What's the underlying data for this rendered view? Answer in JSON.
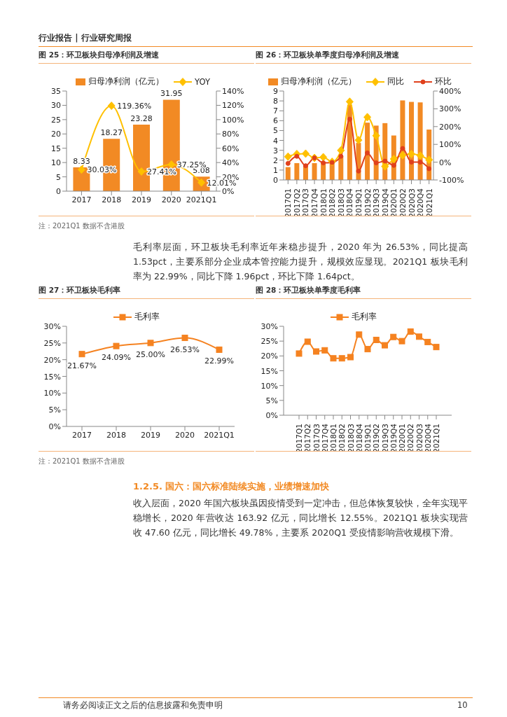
{
  "chart_data": [
    {
      "type": "bar",
      "title": "图 25：环卫板块归母净利润及增速",
      "categories": [
        "2017",
        "2018",
        "2019",
        "2020",
        "2021Q1"
      ],
      "series": [
        {
          "name": "归母净利润（亿元）",
          "type": "bar",
          "color": "#f28a24",
          "values": [
            8.33,
            18.27,
            23.28,
            31.95,
            5.08
          ],
          "value_labels": [
            "8.33",
            "18.27",
            "23.28",
            "31.95",
            "5.08"
          ]
        },
        {
          "name": "YOY",
          "type": "line",
          "axis": "y2",
          "color": "#ffc000",
          "marker": "diamond",
          "values": [
            30.03,
            119.36,
            27.41,
            37.25,
            12.01
          ],
          "value_labels": [
            "30.03%",
            "119.36%",
            "27.41%",
            "37.25%",
            "12.01%"
          ]
        }
      ],
      "ylim": [
        0,
        35
      ],
      "yticks": [
        0,
        5,
        10,
        15,
        20,
        25,
        30,
        35
      ],
      "y2lim": [
        0,
        140
      ],
      "y2ticks": [
        {
          "value": 0,
          "label": "0%"
        },
        {
          "value": 20,
          "label": "20%"
        },
        {
          "value": 40,
          "label": "40%"
        },
        {
          "value": 60,
          "label": "60%"
        },
        {
          "value": 80,
          "label": "80%"
        },
        {
          "value": 100,
          "label": "100%"
        },
        {
          "value": 120,
          "label": "120%"
        },
        {
          "value": 140,
          "label": "140%"
        }
      ],
      "legend": "top",
      "annotations": [
        "行业报告 | 行业研究周报",
        "注：2021Q1 数据不含港股"
      ]
    },
    {
      "type": "bar",
      "title": "图 26：环卫板块单季度归母净利润及增速",
      "categories": [
        "2017Q1",
        "2017Q2",
        "2017Q3",
        "2017Q4",
        "2018Q1",
        "2018Q2",
        "2018Q3",
        "2018Q4",
        "2019Q1",
        "2019Q2",
        "2019Q3",
        "2019Q4",
        "2020Q1",
        "2020Q2",
        "2020Q3",
        "2020Q4",
        "2021Q1"
      ],
      "series": [
        {
          "name": "归母净利润（亿元）",
          "type": "bar",
          "color": "#f28a24",
          "values": [
            1.3,
            1.7,
            1.5,
            1.7,
            1.8,
            1.9,
            2.4,
            7.6,
            3.75,
            5.8,
            5.5,
            5.75,
            4.5,
            8.05,
            7.9,
            7.85,
            5.1
          ]
        },
        {
          "name": "同比",
          "type": "line",
          "axis": "y2",
          "color": "#ffc000",
          "marker": "diamond",
          "values": [
            31,
            46,
            48,
            24,
            28,
            2,
            66,
            340,
            124,
            253,
            149,
            -24,
            18,
            39,
            46,
            37,
            13
          ]
        },
        {
          "name": "环比",
          "type": "line",
          "axis": "y2",
          "color": "#e0401c",
          "marker": "circle",
          "values": [
            -7,
            33,
            -20,
            24,
            -4,
            -2,
            33,
            242,
            -50,
            52,
            -4,
            6,
            -18,
            77,
            0,
            0,
            -37
          ]
        }
      ],
      "ylim": [
        0,
        9
      ],
      "yticks": [
        0,
        1,
        2,
        3,
        4,
        5,
        6,
        7,
        8,
        9
      ],
      "y2lim": [
        -100,
        400
      ],
      "y2ticks": [
        {
          "value": -100,
          "label": "-100%"
        },
        {
          "value": 0,
          "label": "0%"
        },
        {
          "value": 100,
          "label": "100%"
        },
        {
          "value": 200,
          "label": "200%"
        },
        {
          "value": 300,
          "label": "300%"
        },
        {
          "value": 400,
          "label": "400%"
        }
      ],
      "legend": "top"
    },
    {
      "type": "line",
      "title": "图 27：环卫板块毛利率",
      "categories": [
        "2017",
        "2018",
        "2019",
        "2020",
        "2021Q1"
      ],
      "series": [
        {
          "name": "毛利率",
          "color": "#f58220",
          "marker": "square",
          "values": [
            21.67,
            24.09,
            25.0,
            26.53,
            22.99
          ],
          "value_labels": [
            "21.67%",
            "24.09%",
            "25.00%",
            "26.53%",
            "22.99%"
          ]
        }
      ],
      "ylim": [
        0,
        30
      ],
      "yticks": [
        {
          "value": 0,
          "label": "0%"
        },
        {
          "value": 5,
          "label": "5%"
        },
        {
          "value": 10,
          "label": "10%"
        },
        {
          "value": 15,
          "label": "15%"
        },
        {
          "value": 20,
          "label": "20%"
        },
        {
          "value": 25,
          "label": "25%"
        },
        {
          "value": 30,
          "label": "30%"
        }
      ],
      "legend": "top",
      "annotations": [
        "毛利率层面，环卫板块毛利率近年来稳步提升，2020 年为 26.53%，同比提高 1.53pct，主要系部分企业成本管控能力提升，规模效应显现。2021Q1 板块毛利率为 22.99%，同比下降 1.96pct，环比下降 1.64pct。",
        "注：2021Q1 数据不含港股"
      ]
    },
    {
      "type": "line",
      "title": "图 28：环卫板块单季度毛利率",
      "categories": [
        "2017Q1",
        "2017Q2",
        "2017Q3",
        "2017Q4",
        "2018Q1",
        "2018Q2",
        "2018Q3",
        "2018Q4",
        "2019Q1",
        "2019Q2",
        "2019Q3",
        "2019Q4",
        "2020Q1",
        "2020Q2",
        "2020Q3",
        "2020Q4",
        "2021Q1"
      ],
      "series": [
        {
          "name": "毛利率",
          "color": "#f58220",
          "marker": "square",
          "values": [
            20.8,
            24.8,
            21.5,
            21.9,
            19.2,
            19.2,
            19.6,
            27.2,
            22.3,
            25.4,
            23.6,
            26.4,
            25.0,
            28.2,
            26.5,
            24.7,
            23.0
          ]
        }
      ],
      "ylim": [
        0,
        30
      ],
      "yticks": [
        {
          "value": 0,
          "label": "0%"
        },
        {
          "value": 5,
          "label": "5%"
        },
        {
          "value": 10,
          "label": "10%"
        },
        {
          "value": 15,
          "label": "15%"
        },
        {
          "value": 20,
          "label": "20%"
        },
        {
          "value": 25,
          "label": "25%"
        },
        {
          "value": 30,
          "label": "30%"
        }
      ],
      "legend": "top",
      "annotations": [
        "1.2.5. 国六：国六标准陆续实施，业绩增速加快",
        "收入层面，2020 年国六板块虽因疫情受到一定冲击，但总体恢复较快，全年实现平稳增长，2020 年营收达 163.92 亿元，同比增长 12.55%。2021Q1 板块实现营收 47.60 亿元，同比增长 49.78%，主要系 2020Q1 受疫情影响营收规模下滑。",
        "请务必阅读正文之后的信息披露和免责申明",
        "10"
      ]
    }
  ]
}
